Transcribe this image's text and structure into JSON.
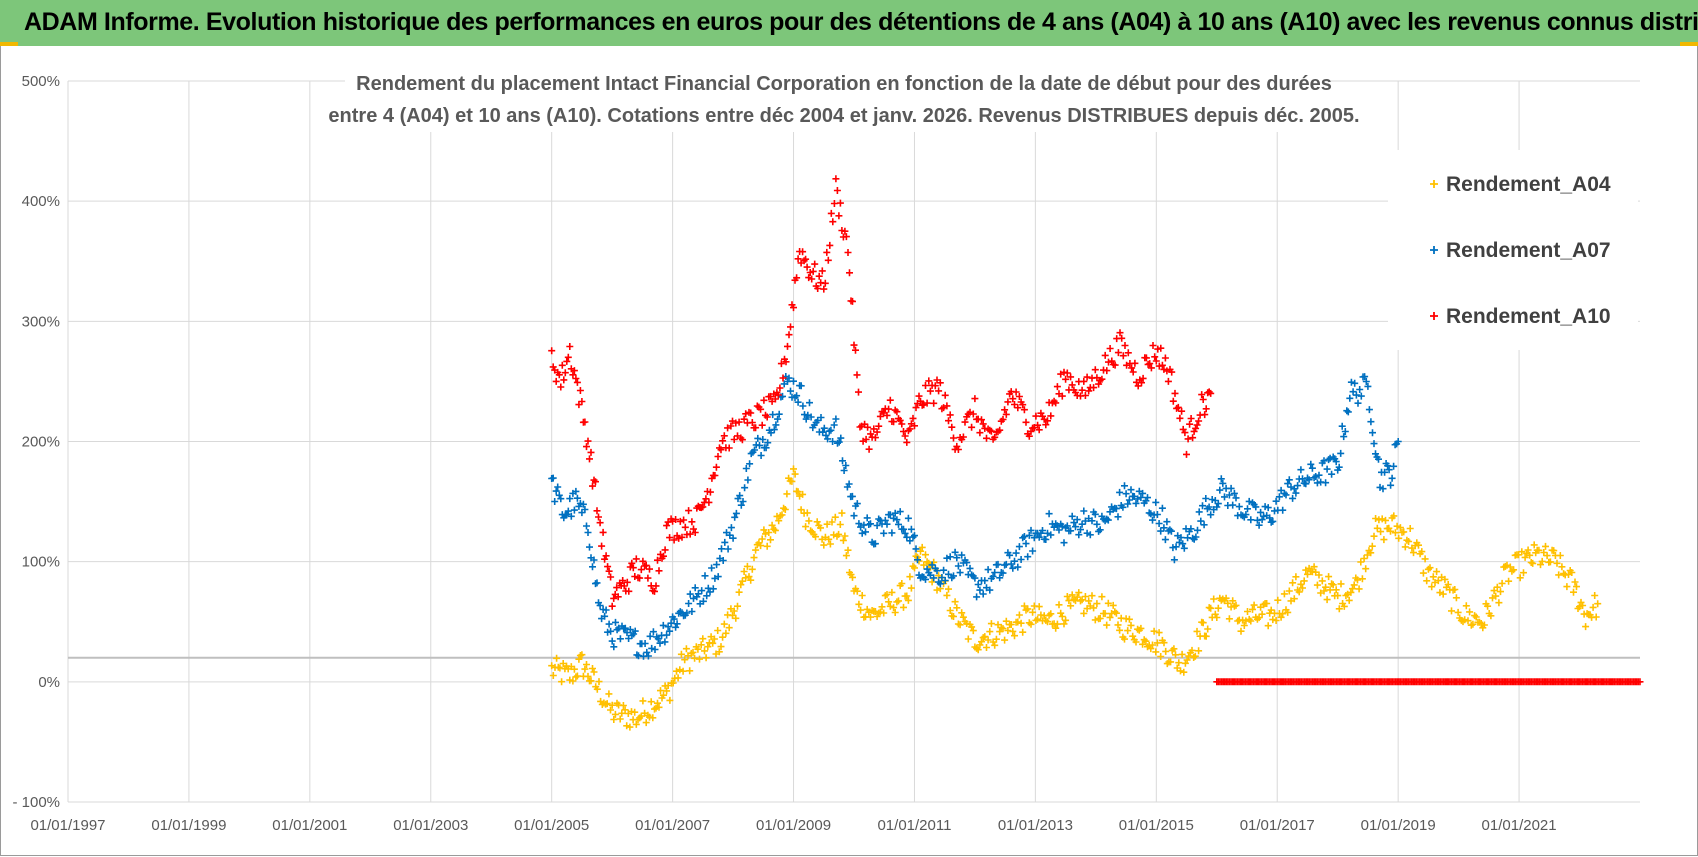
{
  "banner": {
    "title": "ADAM Informe. Evolution historique des performances en euros pour des détentions de 4 ans (A04) à 10 ans (A10) avec les revenus connus distribués"
  },
  "colors": {
    "banner": "#7dc67a",
    "A04": "#ffc000",
    "A07": "#0070c0",
    "A10": "#ff0000",
    "grid": "#d9d9d9",
    "axis": "#bfbfbf"
  },
  "chart_data": {
    "type": "scatter",
    "marker": "+",
    "title_lines": [
      "Rendement du placement Intact Financial Corporation en fonction de la date de début pour des durées",
      "entre 4 (A04) et 10 ans (A10). Cotations entre déc 2004 et janv. 2026. Revenus DISTRIBUES depuis déc. 2005."
    ],
    "xlabel": "",
    "ylabel": "",
    "xlim": [
      1997.0,
      2023.0
    ],
    "ylim": [
      -100,
      500
    ],
    "y_ticks": [
      500,
      400,
      300,
      200,
      100,
      0,
      -100
    ],
    "y_tick_labels": [
      "500%",
      "400%",
      "300%",
      "200%",
      "100%",
      "0%",
      "- 100%"
    ],
    "x_tick_values": [
      1997,
      1999,
      2001,
      2003,
      2005,
      2007,
      2009,
      2011,
      2013,
      2015,
      2017,
      2019,
      2021
    ],
    "x_tick_labels": [
      "01/01/1997",
      "01/01/1999",
      "01/01/2001",
      "01/01/2003",
      "01/01/2005",
      "01/01/2007",
      "01/01/2009",
      "01/01/2011",
      "01/01/2013",
      "01/01/2015",
      "01/01/2017",
      "01/01/2019",
      "01/01/2021"
    ],
    "reference_line_y": 20,
    "legend_position": "top-right",
    "series": [
      {
        "name": "Rendement_A04",
        "x": [
          2005.0,
          2005.3,
          2005.5,
          2005.7,
          2006.0,
          2006.4,
          2006.7,
          2006.9,
          2007.2,
          2007.5,
          2007.8,
          2008.1,
          2008.4,
          2008.7,
          2009.0,
          2009.2,
          2009.5,
          2009.8,
          2010.0,
          2010.3,
          2010.6,
          2010.9,
          2011.1,
          2011.4,
          2011.7,
          2012.0,
          2012.3,
          2012.6,
          2012.9,
          2013.2,
          2013.5,
          2013.8,
          2014.1,
          2014.5,
          2014.8,
          2015.1,
          2015.4,
          2015.7,
          2015.9,
          2016.1,
          2016.4,
          2016.7,
          2016.9,
          2017.2,
          2017.5,
          2017.8,
          2018.0,
          2018.3,
          2018.6,
          2018.9,
          2019.2,
          2019.5,
          2019.8,
          2020.1,
          2020.4,
          2020.8,
          2021.1,
          2021.3,
          2021.6,
          2021.9,
          2022.1,
          2022.3
        ],
        "y": [
          10,
          5,
          15,
          0,
          -25,
          -30,
          -18,
          -10,
          18,
          25,
          35,
          70,
          110,
          130,
          170,
          140,
          120,
          130,
          75,
          55,
          65,
          75,
          105,
          85,
          55,
          35,
          40,
          45,
          55,
          50,
          60,
          65,
          60,
          45,
          40,
          30,
          15,
          35,
          55,
          70,
          50,
          55,
          55,
          70,
          90,
          80,
          70,
          80,
          125,
          130,
          120,
          90,
          75,
          55,
          50,
          90,
          100,
          105,
          100,
          80,
          55,
          65
        ]
      },
      {
        "name": "Rendement_A07",
        "x": [
          2005.0,
          2005.2,
          2005.4,
          2005.6,
          2005.8,
          2006.0,
          2006.3,
          2006.6,
          2006.9,
          2007.1,
          2007.4,
          2007.7,
          2008.0,
          2008.3,
          2008.6,
          2008.9,
          2009.1,
          2009.4,
          2009.7,
          2010.0,
          2010.3,
          2010.6,
          2010.9,
          2011.1,
          2011.4,
          2011.7,
          2012.0,
          2012.3,
          2012.6,
          2012.9,
          2013.2,
          2013.5,
          2013.8,
          2014.1,
          2014.5,
          2014.8,
          2015.1,
          2015.3,
          2015.6,
          2015.9,
          2016.1,
          2016.4,
          2016.7,
          2016.9,
          2017.2,
          2017.5,
          2017.8,
          2018.0,
          2018.2,
          2018.5,
          2018.7,
          2018.9,
          2019.0
        ],
        "y": [
          165,
          140,
          150,
          130,
          60,
          40,
          35,
          30,
          45,
          55,
          70,
          90,
          130,
          185,
          210,
          250,
          240,
          210,
          210,
          145,
          120,
          135,
          130,
          95,
          90,
          100,
          80,
          85,
          100,
          115,
          130,
          125,
          135,
          130,
          155,
          150,
          135,
          110,
          125,
          150,
          160,
          145,
          135,
          140,
          160,
          170,
          175,
          180,
          240,
          245,
          170,
          175,
          200
        ]
      },
      {
        "name": "Rendement_A10",
        "x": [
          2005.0,
          2005.15,
          2005.3,
          2005.45,
          2005.6,
          2005.8,
          2006.0,
          2006.2,
          2006.4,
          2006.7,
          2006.9,
          2007.1,
          2007.4,
          2007.6,
          2007.8,
          2008.1,
          2008.4,
          2008.7,
          2008.9,
          2009.1,
          2009.3,
          2009.5,
          2009.7,
          2009.9,
          2010.1,
          2010.3,
          2010.6,
          2010.9,
          2011.1,
          2011.4,
          2011.7,
          2012.0,
          2012.3,
          2012.6,
          2012.9,
          2013.2,
          2013.5,
          2013.8,
          2014.1,
          2014.4,
          2014.7,
          2015.0,
          2015.2,
          2015.5,
          2015.7,
          2015.9
        ],
        "y": [
          270,
          250,
          275,
          240,
          200,
          130,
          70,
          80,
          95,
          85,
          125,
          130,
          135,
          160,
          200,
          210,
          220,
          230,
          280,
          360,
          340,
          330,
          410,
          360,
          215,
          200,
          230,
          200,
          235,
          245,
          200,
          225,
          195,
          240,
          215,
          220,
          255,
          240,
          260,
          280,
          255,
          275,
          260,
          200,
          225,
          240
        ]
      },
      {
        "name": "Rendement_A10 (zero segment)",
        "x": [
          2016.0,
          2023.0
        ],
        "y": [
          0,
          0
        ]
      }
    ]
  },
  "legend": {
    "items": [
      {
        "label": "Rendement_A04",
        "color": "#ffc000"
      },
      {
        "label": "Rendement_A07",
        "color": "#0070c0"
      },
      {
        "label": "Rendement_A10",
        "color": "#ff0000"
      }
    ]
  }
}
